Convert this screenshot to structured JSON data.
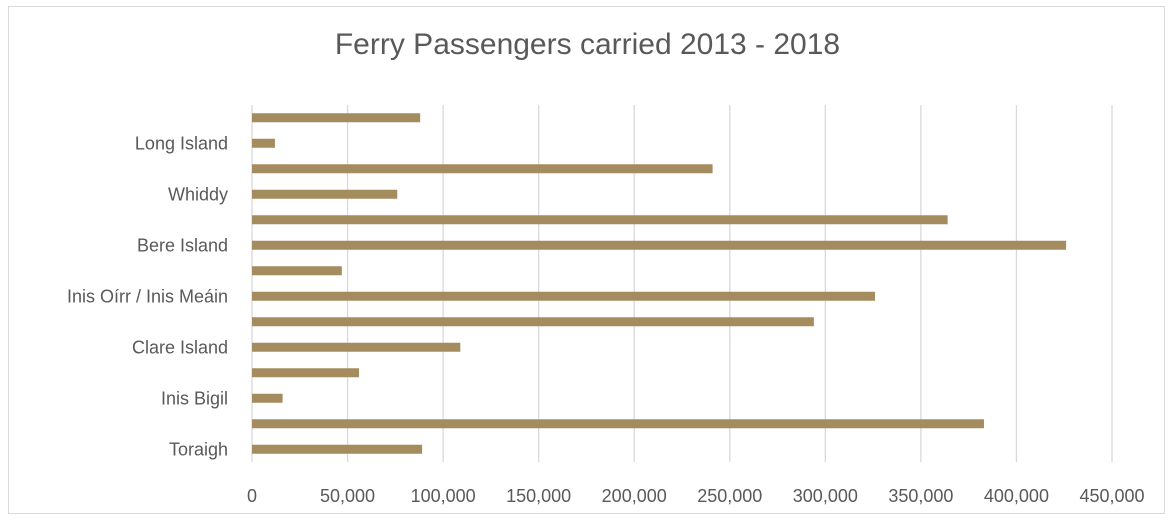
{
  "chart_data": {
    "type": "bar",
    "orientation": "horizontal",
    "title": "Ferry Passengers carried  2013 - 2018",
    "xlabel": "",
    "ylabel": "",
    "xlim": [
      0,
      450000
    ],
    "x_ticks": [
      0,
      50000,
      100000,
      150000,
      200000,
      250000,
      300000,
      350000,
      400000,
      450000
    ],
    "x_tick_labels": [
      "0",
      "50,000",
      "100,000",
      "150,000",
      "200,000",
      "250,000",
      "300,000",
      "350,000",
      "400,000",
      "450,000"
    ],
    "grid": true,
    "legend": "none",
    "bar_color": "#a58c5f",
    "categories_bottom_to_top": [
      "Toraigh",
      "",
      "Inis Bigil",
      "",
      "Clare Island",
      "",
      "Inis Oírr / Inis Meáin",
      "",
      "Bere Island",
      "",
      "Whiddy",
      "",
      "Long Island",
      ""
    ],
    "values_bottom_to_top": [
      89000,
      383000,
      16000,
      56000,
      109000,
      294000,
      326000,
      47000,
      426000,
      364000,
      76000,
      241000,
      12000,
      88000
    ]
  }
}
